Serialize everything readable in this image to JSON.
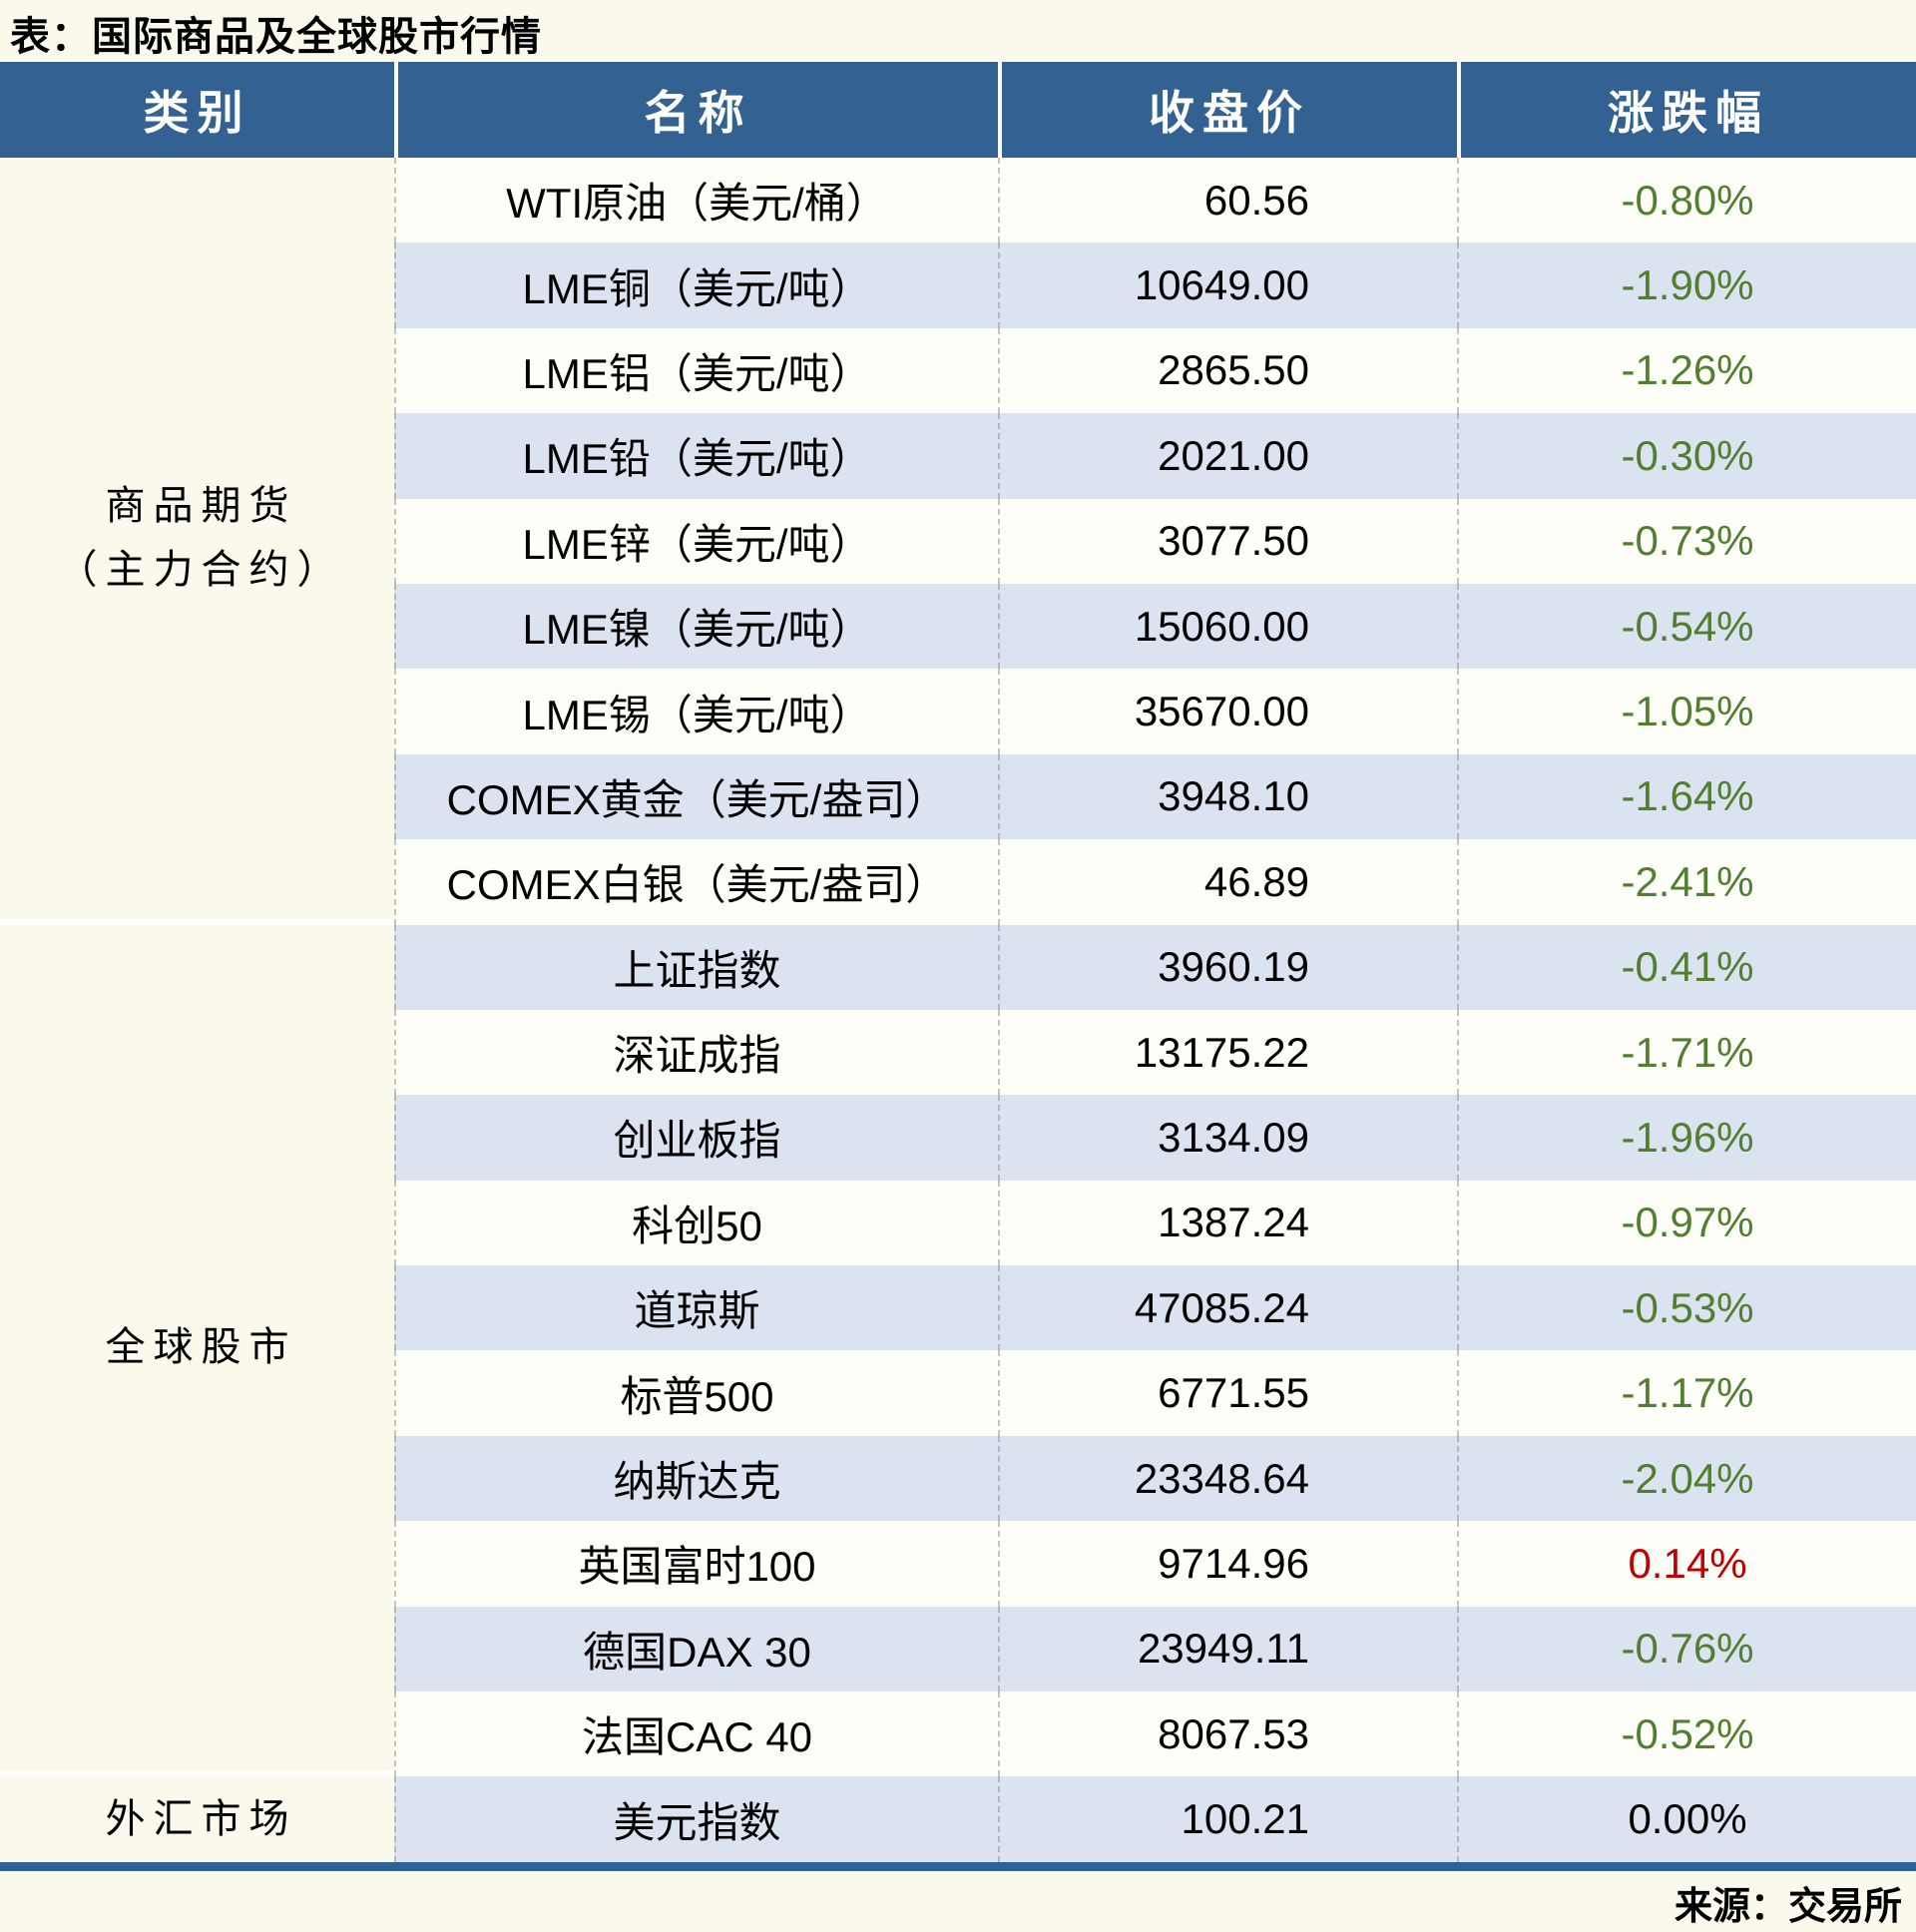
{
  "page": {
    "title": "表：国际商品及全球股市行情",
    "source": "来源：交易所"
  },
  "colors": {
    "header_bg": "#336292",
    "row_light": "#FEFEF9",
    "row_dark": "#DBE3F1",
    "page_bg": "#FAF9EB",
    "bottom_bar": "#2E6296",
    "change_down_green": "#527F2F",
    "change_up_red": "#C00000",
    "change_flat_black": "#000000"
  },
  "chart_data": {
    "type": "table",
    "title": "表：国际商品及全球股市行情",
    "columns": [
      "类别",
      "名称",
      "收盘价",
      "涨跌幅"
    ],
    "groups": [
      {
        "category": "商品期货（主力合约）",
        "category_lines": [
          "商品期货",
          "（主力合约）"
        ],
        "rows": [
          {
            "name": "WTI原油（美元/桶）",
            "close": "60.56",
            "change": "-0.80%",
            "direction": "down"
          },
          {
            "name": "LME铜（美元/吨）",
            "close": "10649.00",
            "change": "-1.90%",
            "direction": "down"
          },
          {
            "name": "LME铝（美元/吨）",
            "close": "2865.50",
            "change": "-1.26%",
            "direction": "down"
          },
          {
            "name": "LME铅（美元/吨）",
            "close": "2021.00",
            "change": "-0.30%",
            "direction": "down"
          },
          {
            "name": "LME锌（美元/吨）",
            "close": "3077.50",
            "change": "-0.73%",
            "direction": "down"
          },
          {
            "name": "LME镍（美元/吨）",
            "close": "15060.00",
            "change": "-0.54%",
            "direction": "down"
          },
          {
            "name": "LME锡（美元/吨）",
            "close": "35670.00",
            "change": "-1.05%",
            "direction": "down"
          },
          {
            "name": "COMEX黄金（美元/盎司）",
            "close": "3948.10",
            "change": "-1.64%",
            "direction": "down"
          },
          {
            "name": "COMEX白银（美元/盎司）",
            "close": "46.89",
            "change": "-2.41%",
            "direction": "down"
          }
        ]
      },
      {
        "category": "全球股市",
        "category_lines": [
          "全球股市"
        ],
        "rows": [
          {
            "name": "上证指数",
            "close": "3960.19",
            "change": "-0.41%",
            "direction": "down"
          },
          {
            "name": "深证成指",
            "close": "13175.22",
            "change": "-1.71%",
            "direction": "down"
          },
          {
            "name": "创业板指",
            "close": "3134.09",
            "change": "-1.96%",
            "direction": "down"
          },
          {
            "name": "科创50",
            "close": "1387.24",
            "change": "-0.97%",
            "direction": "down"
          },
          {
            "name": "道琼斯",
            "close": "47085.24",
            "change": "-0.53%",
            "direction": "down"
          },
          {
            "name": "标普500",
            "close": "6771.55",
            "change": "-1.17%",
            "direction": "down"
          },
          {
            "name": "纳斯达克",
            "close": "23348.64",
            "change": "-2.04%",
            "direction": "down"
          },
          {
            "name": "英国富时100",
            "close": "9714.96",
            "change": "0.14%",
            "direction": "up"
          },
          {
            "name": "德国DAX 30",
            "close": "23949.11",
            "change": "-0.76%",
            "direction": "down"
          },
          {
            "name": "法国CAC 40",
            "close": "8067.53",
            "change": "-0.52%",
            "direction": "down"
          }
        ]
      },
      {
        "category": "外汇市场",
        "category_lines": [
          "外汇市场"
        ],
        "rows": [
          {
            "name": "美元指数",
            "close": "100.21",
            "change": "0.00%",
            "direction": "flat"
          }
        ]
      }
    ],
    "source": "来源：交易所"
  }
}
